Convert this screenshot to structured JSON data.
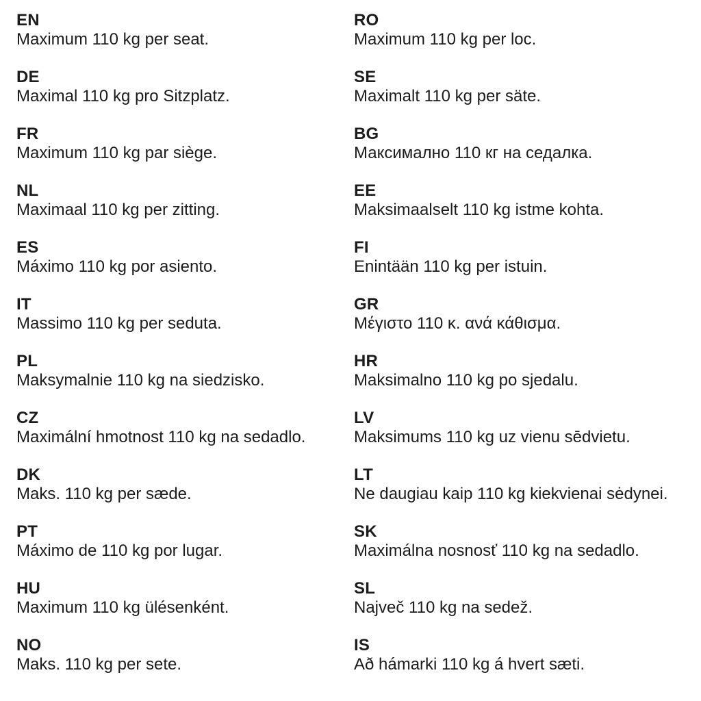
{
  "document": {
    "description_value": "Maximum weight per seat notice, 110 kg, in 24 languages",
    "columns": [
      {
        "entries": [
          {
            "code": "EN",
            "text": "Maximum 110 kg per seat."
          },
          {
            "code": "DE",
            "text": "Maximal 110 kg pro Sitzplatz."
          },
          {
            "code": "FR",
            "text": "Maximum 110 kg par siège."
          },
          {
            "code": "NL",
            "text": "Maximaal 110 kg per zitting."
          },
          {
            "code": "ES",
            "text": "Máximo 110 kg por asiento."
          },
          {
            "code": "IT",
            "text": "Massimo 110 kg per seduta."
          },
          {
            "code": "PL",
            "text": "Maksymalnie 110 kg na siedzisko."
          },
          {
            "code": "CZ",
            "text": "Maximální hmotnost 110 kg na sedadlo."
          },
          {
            "code": "DK",
            "text": "Maks. 110 kg per sæde."
          },
          {
            "code": "PT",
            "text": "Máximo de 110 kg por lugar."
          },
          {
            "code": "HU",
            "text": "Maximum 110 kg ülésenként."
          },
          {
            "code": "NO",
            "text": "Maks. 110 kg per sete."
          }
        ]
      },
      {
        "entries": [
          {
            "code": "RO",
            "text": "Maximum 110 kg per loc."
          },
          {
            "code": "SE",
            "text": "Maximalt 110 kg per säte."
          },
          {
            "code": "BG",
            "text": "Максимално 110 кг на седалка."
          },
          {
            "code": "EE",
            "text": "Maksimaalselt 110 kg istme kohta."
          },
          {
            "code": "FI",
            "text": "Enintään 110 kg per istuin."
          },
          {
            "code": "GR",
            "text": "Μέγιστο 110 κ. ανά κάθισμα."
          },
          {
            "code": "HR",
            "text": "Maksimalno 110 kg po sjedalu."
          },
          {
            "code": "LV",
            "text": "Maksimums 110 kg uz vienu sēdvietu."
          },
          {
            "code": "LT",
            "text": "Ne daugiau kaip 110 kg kiekvienai sėdynei."
          },
          {
            "code": "SK",
            "text": "Maximálna nosnosť 110 kg na sedadlo."
          },
          {
            "code": "SL",
            "text": "Največ 110 kg na sedež."
          },
          {
            "code": "IS",
            "text": "Að hámarki 110 kg á hvert sæti."
          }
        ]
      }
    ],
    "text_color": "#1c1c1c",
    "background_color": "#ffffff"
  }
}
